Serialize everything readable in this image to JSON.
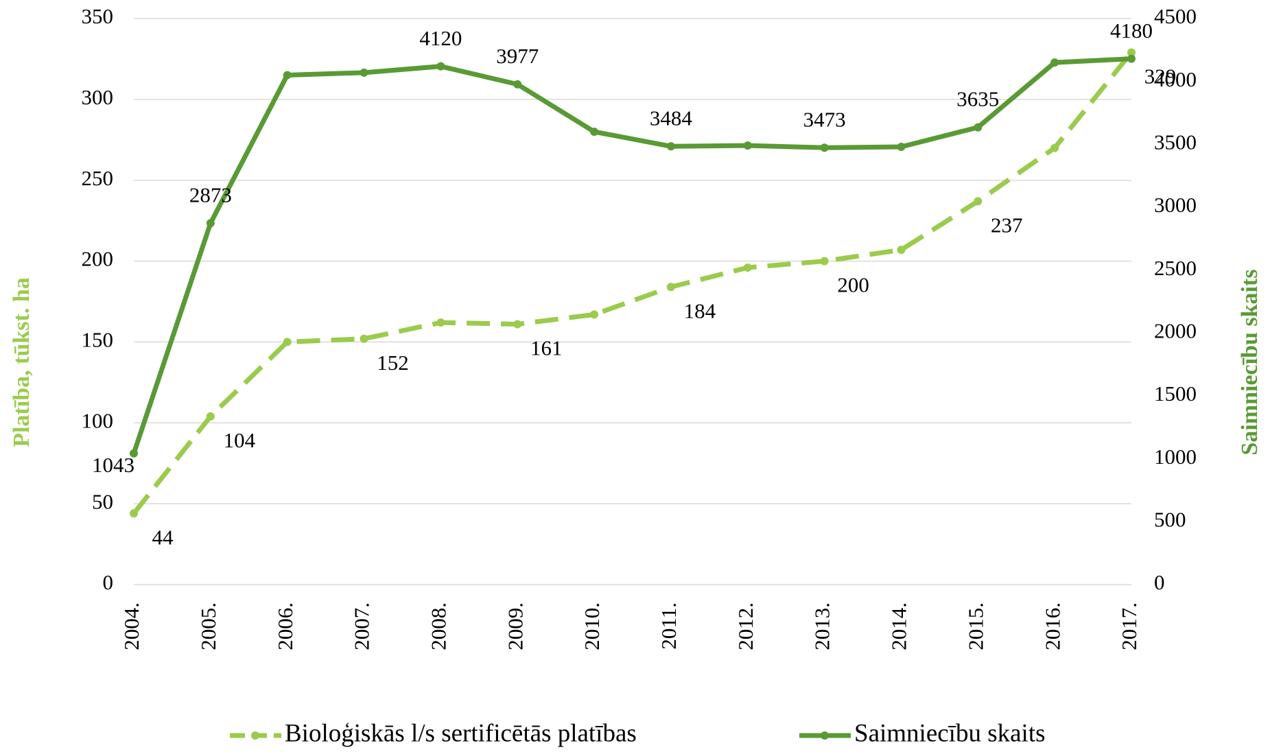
{
  "chart_data": {
    "type": "line",
    "categories": [
      "2004.",
      "2005.",
      "2006.",
      "2007.",
      "2008.",
      "2009.",
      "2010.",
      "2011.",
      "2012.",
      "2013.",
      "2014.",
      "2015.",
      "2016.",
      "2017."
    ],
    "y_label": "Platība, tūkst. ha",
    "y2_label": "Saimniecību skaits",
    "ylim": [
      0,
      350
    ],
    "yticks": [
      0,
      50,
      100,
      150,
      200,
      250,
      300,
      350
    ],
    "y2lim": [
      0,
      4500
    ],
    "y2ticks": [
      0,
      500,
      1000,
      1500,
      2000,
      2500,
      3000,
      3500,
      4000,
      4500
    ],
    "grid": true,
    "legend": "bottom",
    "series": [
      {
        "name": "Bioloģiskās l/s sertificētās platības",
        "color": "#9bcb4c",
        "dashed": true,
        "values": [
          44,
          104,
          150,
          152,
          162,
          161,
          167,
          184,
          196,
          200,
          207,
          237,
          270,
          329
        ],
        "value_labels": [
          "44",
          "104",
          null,
          "152",
          null,
          "161",
          null,
          "184",
          null,
          "200",
          null,
          "237",
          null,
          "329"
        ]
      },
      {
        "name": "Saimniecību skaits",
        "color": "#5a9a35",
        "axis": "y2",
        "values": [
          1043,
          2873,
          4050,
          4070,
          4120,
          3977,
          3600,
          3484,
          3490,
          3473,
          3480,
          3635,
          4150,
          4180
        ],
        "value_labels": [
          "1043",
          "2873",
          null,
          null,
          "4120",
          "3977",
          null,
          "3484",
          null,
          "3473",
          null,
          "3635",
          null,
          "4180"
        ]
      }
    ]
  }
}
